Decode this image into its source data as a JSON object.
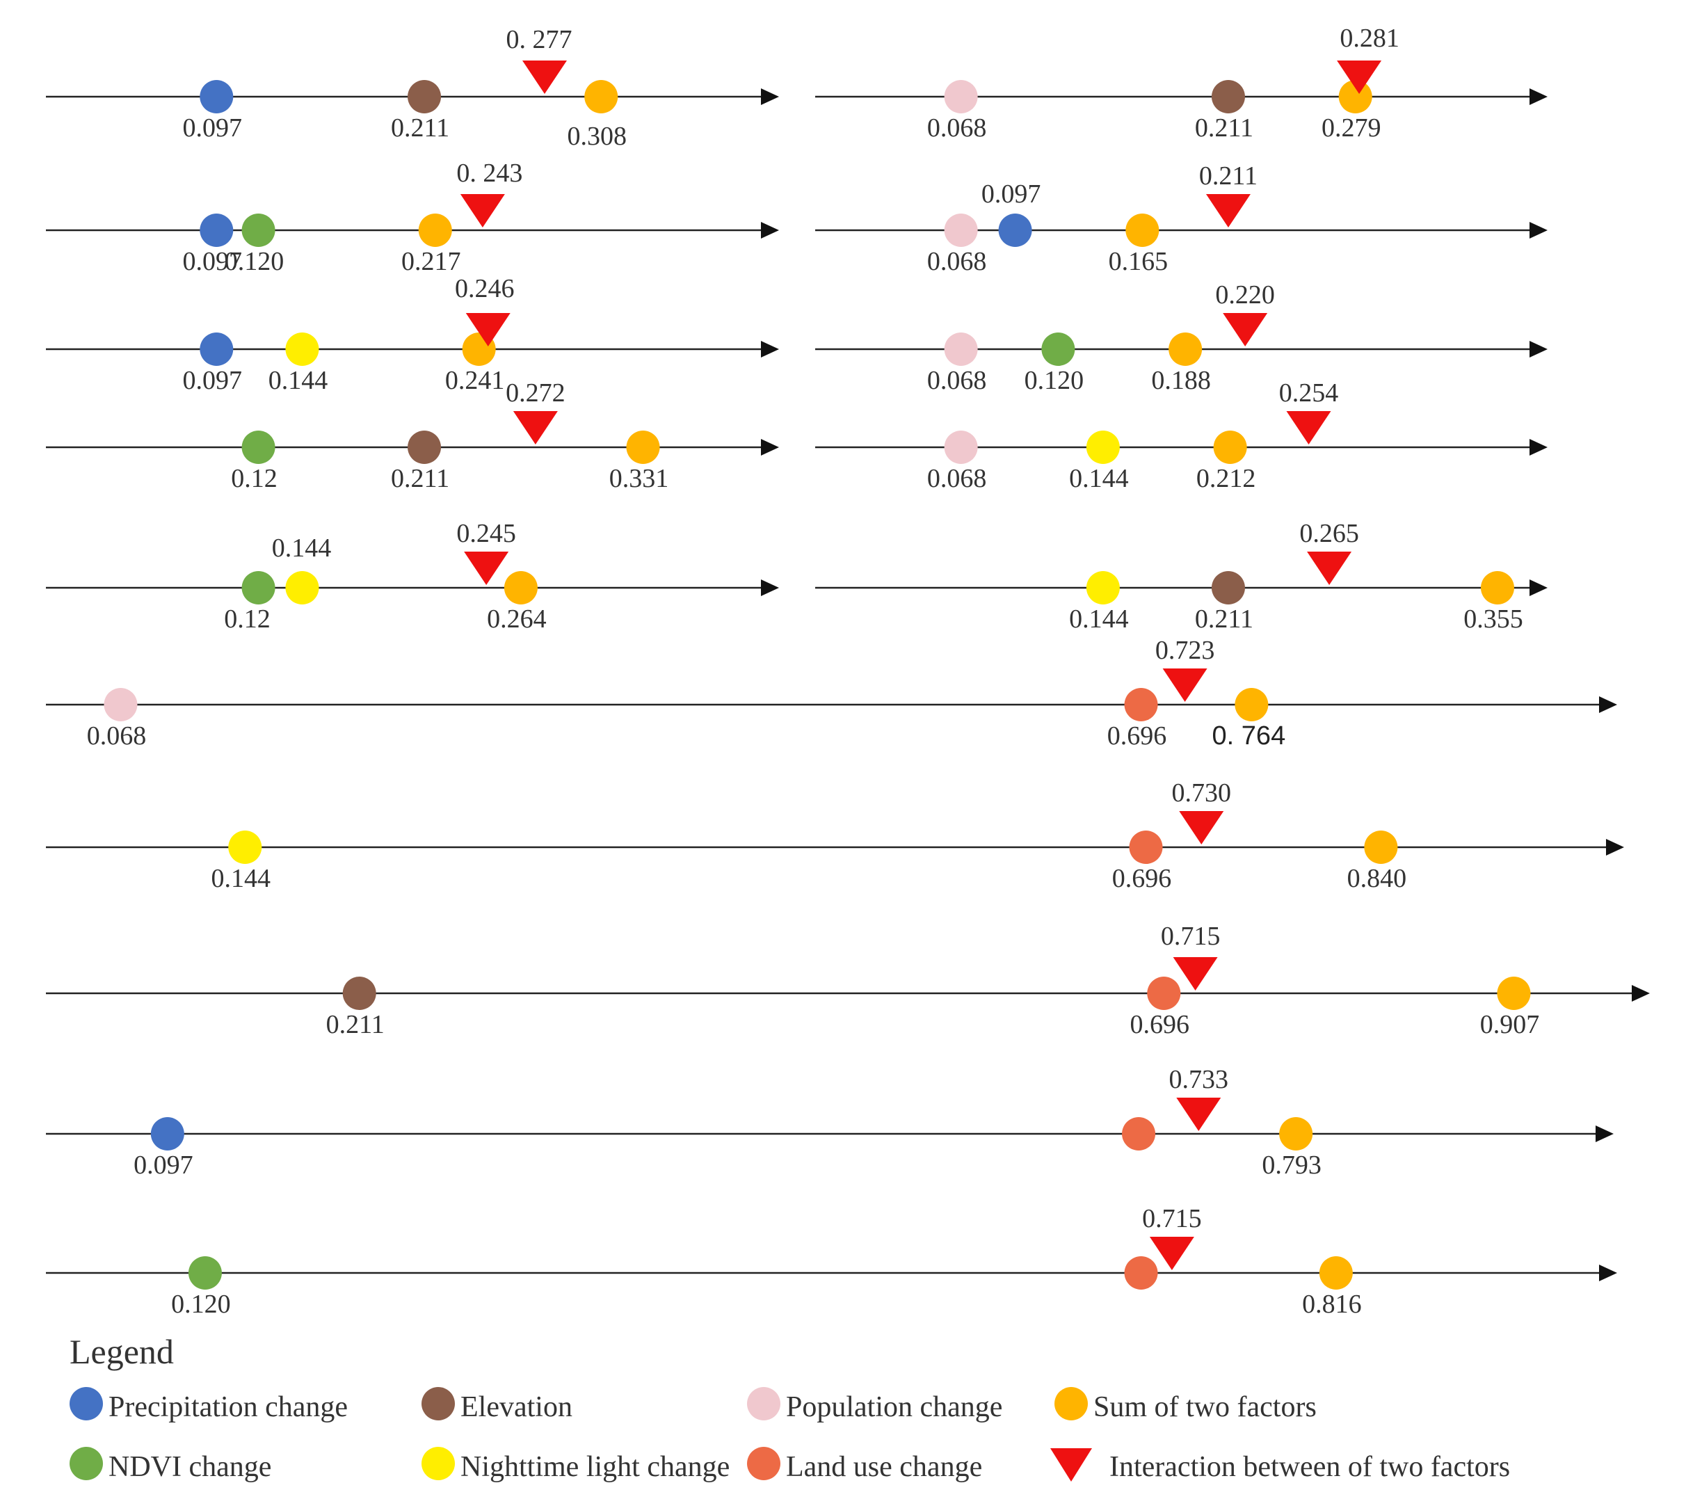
{
  "chart_data": {
    "type": "scatter",
    "description_units": "q-statistic",
    "colors": {
      "precip": "#4472C4",
      "elev": "#8B5E4A",
      "pop": "#F0C8CE",
      "ndvi": "#70AD47",
      "light": "#FFEE00",
      "landuse": "#ED6A45",
      "sum": "#FFB400",
      "interaction": "#EE1111"
    },
    "rows": [
      {
        "markers": [
          {
            "cat": "precip",
            "value": 0.097,
            "label": "0.097"
          },
          {
            "cat": "elev",
            "value": 0.211,
            "label": "0.211"
          },
          {
            "cat": "interaction",
            "value": 0.277,
            "label": "0. 277"
          },
          {
            "cat": "sum",
            "value": 0.308,
            "label": "0.308"
          }
        ]
      },
      {
        "markers": [
          {
            "cat": "pop",
            "value": 0.068,
            "label": "0.068"
          },
          {
            "cat": "elev",
            "value": 0.211,
            "label": "0.211"
          },
          {
            "cat": "sum",
            "value": 0.279,
            "label": "0.279"
          },
          {
            "cat": "interaction",
            "value": 0.281,
            "label": "0.281"
          }
        ]
      },
      {
        "markers": [
          {
            "cat": "precip",
            "value": 0.097,
            "label": "0.097"
          },
          {
            "cat": "ndvi",
            "value": 0.12,
            "label": "0.120"
          },
          {
            "cat": "sum",
            "value": 0.217,
            "label": "0.217"
          },
          {
            "cat": "interaction",
            "value": 0.243,
            "label": "0. 243"
          }
        ]
      },
      {
        "markers": [
          {
            "cat": "pop",
            "value": 0.068,
            "label": "0.068"
          },
          {
            "cat": "precip",
            "value": 0.097,
            "label": "0.097"
          },
          {
            "cat": "sum",
            "value": 0.165,
            "label": "0.165"
          },
          {
            "cat": "interaction",
            "value": 0.211,
            "label": "0.211"
          }
        ]
      },
      {
        "markers": [
          {
            "cat": "precip",
            "value": 0.097,
            "label": "0.097"
          },
          {
            "cat": "light",
            "value": 0.144,
            "label": "0.144"
          },
          {
            "cat": "sum",
            "value": 0.241,
            "label": "0.241"
          },
          {
            "cat": "interaction",
            "value": 0.246,
            "label": "0.246"
          }
        ]
      },
      {
        "markers": [
          {
            "cat": "pop",
            "value": 0.068,
            "label": "0.068"
          },
          {
            "cat": "ndvi",
            "value": 0.12,
            "label": "0.120"
          },
          {
            "cat": "sum",
            "value": 0.188,
            "label": "0.188"
          },
          {
            "cat": "interaction",
            "value": 0.22,
            "label": "0.220"
          }
        ]
      },
      {
        "markers": [
          {
            "cat": "ndvi",
            "value": 0.12,
            "label": "0.12"
          },
          {
            "cat": "elev",
            "value": 0.211,
            "label": "0.211"
          },
          {
            "cat": "interaction",
            "value": 0.272,
            "label": "0.272"
          },
          {
            "cat": "sum",
            "value": 0.331,
            "label": "0.331"
          }
        ]
      },
      {
        "markers": [
          {
            "cat": "pop",
            "value": 0.068,
            "label": "0.068"
          },
          {
            "cat": "light",
            "value": 0.144,
            "label": "0.144"
          },
          {
            "cat": "sum",
            "value": 0.212,
            "label": "0.212"
          },
          {
            "cat": "interaction",
            "value": 0.254,
            "label": "0.254"
          }
        ]
      },
      {
        "markers": [
          {
            "cat": "ndvi",
            "value": 0.12,
            "label": "0.12"
          },
          {
            "cat": "light",
            "value": 0.144,
            "label": "0.144"
          },
          {
            "cat": "interaction",
            "value": 0.245,
            "label": "0.245"
          },
          {
            "cat": "sum",
            "value": 0.264,
            "label": "0.264"
          }
        ]
      },
      {
        "markers": [
          {
            "cat": "light",
            "value": 0.144,
            "label": "0.144"
          },
          {
            "cat": "elev",
            "value": 0.211,
            "label": "0.211"
          },
          {
            "cat": "interaction",
            "value": 0.265,
            "label": "0.265"
          },
          {
            "cat": "sum",
            "value": 0.355,
            "label": "0.355"
          }
        ]
      },
      {
        "markers": [
          {
            "cat": "pop",
            "value": 0.068,
            "label": "0.068"
          },
          {
            "cat": "landuse",
            "value": 0.696,
            "label": "0.696"
          },
          {
            "cat": "interaction",
            "value": 0.723,
            "label": "0.723"
          },
          {
            "cat": "sum",
            "value": 0.764,
            "label": "0. 764"
          }
        ]
      },
      {
        "markers": [
          {
            "cat": "light",
            "value": 0.144,
            "label": "0.144"
          },
          {
            "cat": "landuse",
            "value": 0.696,
            "label": "0.696"
          },
          {
            "cat": "interaction",
            "value": 0.73,
            "label": "0.730"
          },
          {
            "cat": "sum",
            "value": 0.84,
            "label": "0.840"
          }
        ]
      },
      {
        "markers": [
          {
            "cat": "elev",
            "value": 0.211,
            "label": "0.211"
          },
          {
            "cat": "landuse",
            "value": 0.696,
            "label": "0.696"
          },
          {
            "cat": "interaction",
            "value": 0.715,
            "label": "0.715"
          },
          {
            "cat": "sum",
            "value": 0.907,
            "label": "0.907"
          }
        ]
      },
      {
        "markers": [
          {
            "cat": "precip",
            "value": 0.097,
            "label": "0.097"
          },
          {
            "cat": "landuse",
            "value": 0.696,
            "label": ""
          },
          {
            "cat": "interaction",
            "value": 0.733,
            "label": "0.733"
          },
          {
            "cat": "sum",
            "value": 0.793,
            "label": "0.793"
          }
        ]
      },
      {
        "markers": [
          {
            "cat": "ndvi",
            "value": 0.12,
            "label": "0.120"
          },
          {
            "cat": "landuse",
            "value": 0.696,
            "label": ""
          },
          {
            "cat": "interaction",
            "value": 0.715,
            "label": "0.715"
          },
          {
            "cat": "sum",
            "value": 0.816,
            "label": "0.816"
          }
        ]
      }
    ],
    "legend": {
      "title": "Legend",
      "items": [
        {
          "cat": "precip",
          "label": "Precipitation change",
          "shape": "circle"
        },
        {
          "cat": "elev",
          "label": "Elevation",
          "shape": "circle"
        },
        {
          "cat": "pop",
          "label": "Population change",
          "shape": "circle"
        },
        {
          "cat": "sum",
          "label": "Sum of two factors",
          "shape": "circle"
        },
        {
          "cat": "ndvi",
          "label": "NDVI change",
          "shape": "circle"
        },
        {
          "cat": "light",
          "label": "Nighttime light change",
          "shape": "circle"
        },
        {
          "cat": "landuse",
          "label": "Land use change",
          "shape": "circle"
        },
        {
          "cat": "interaction",
          "label": "Interaction between of two factors",
          "shape": "triangle"
        }
      ]
    }
  }
}
